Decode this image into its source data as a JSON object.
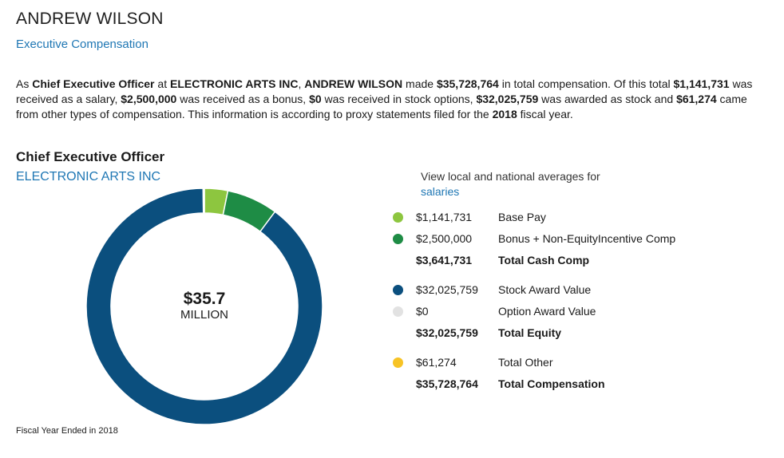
{
  "header": {
    "name": "ANDREW WILSON",
    "subtitle": "Executive Compensation"
  },
  "summary": {
    "t1": "As ",
    "title": "Chief Executive Officer",
    "t2": " at ",
    "company": "ELECTRONIC ARTS INC",
    "t3": ", ",
    "name": "ANDREW WILSON",
    "t4": " made ",
    "total": "$35,728,764",
    "t5": " in total compensation. Of this total ",
    "salary": "$1,141,731",
    "t6": " was received as a salary, ",
    "bonus": "$2,500,000",
    "t7": " was received as a bonus, ",
    "options": "$0",
    "t8": " was received in stock options, ",
    "stock": "$32,025,759",
    "t9": " was awarded as stock and ",
    "other": "$61,274",
    "t10": " came from other types of compensation. This information is according to proxy statements filed for the ",
    "year": "2018",
    "t11": " fiscal year."
  },
  "section": {
    "role": "Chief Executive Officer",
    "company": "ELECTRONIC ARTS INC"
  },
  "averages": {
    "text": "View local and national averages for",
    "link": "salaries"
  },
  "legend": [
    {
      "amount": "$1,141,731",
      "label": "Base Pay",
      "color": "#8dc63f",
      "total": false
    },
    {
      "amount": "$2,500,000",
      "label": "Bonus + Non-EquityIncentive Comp",
      "color": "#1e8c45",
      "total": false
    },
    {
      "amount": "$3,641,731",
      "label": "Total Cash Comp",
      "color": "",
      "total": true
    },
    {
      "amount": "$32,025,759",
      "label": "Stock Award Value",
      "color": "#0b4f7e",
      "total": false
    },
    {
      "amount": "$0",
      "label": "Option Award Value",
      "color": "#e2e2e2",
      "total": false
    },
    {
      "amount": "$32,025,759",
      "label": "Total Equity",
      "color": "",
      "total": true
    },
    {
      "amount": "$61,274",
      "label": "Total Other",
      "color": "#f7c325",
      "total": false
    },
    {
      "amount": "$35,728,764",
      "label": "Total Compensation",
      "color": "",
      "total": true
    }
  ],
  "footer": {
    "fiscal": "Fiscal Year Ended in 2018"
  },
  "chart_data": {
    "type": "pie",
    "title": "",
    "center_value": "$35.7",
    "center_unit": "MILLION",
    "slices": [
      {
        "name": "Base Pay",
        "value": 1141731,
        "color": "#8dc63f"
      },
      {
        "name": "Bonus + Non-EquityIncentive Comp",
        "value": 2500000,
        "color": "#1e8c45"
      },
      {
        "name": "Stock Award Value",
        "value": 32025759,
        "color": "#0b4f7e"
      },
      {
        "name": "Option Award Value",
        "value": 0,
        "color": "#e2e2e2"
      },
      {
        "name": "Total Other",
        "value": 61274,
        "color": "#f7c325"
      }
    ]
  }
}
